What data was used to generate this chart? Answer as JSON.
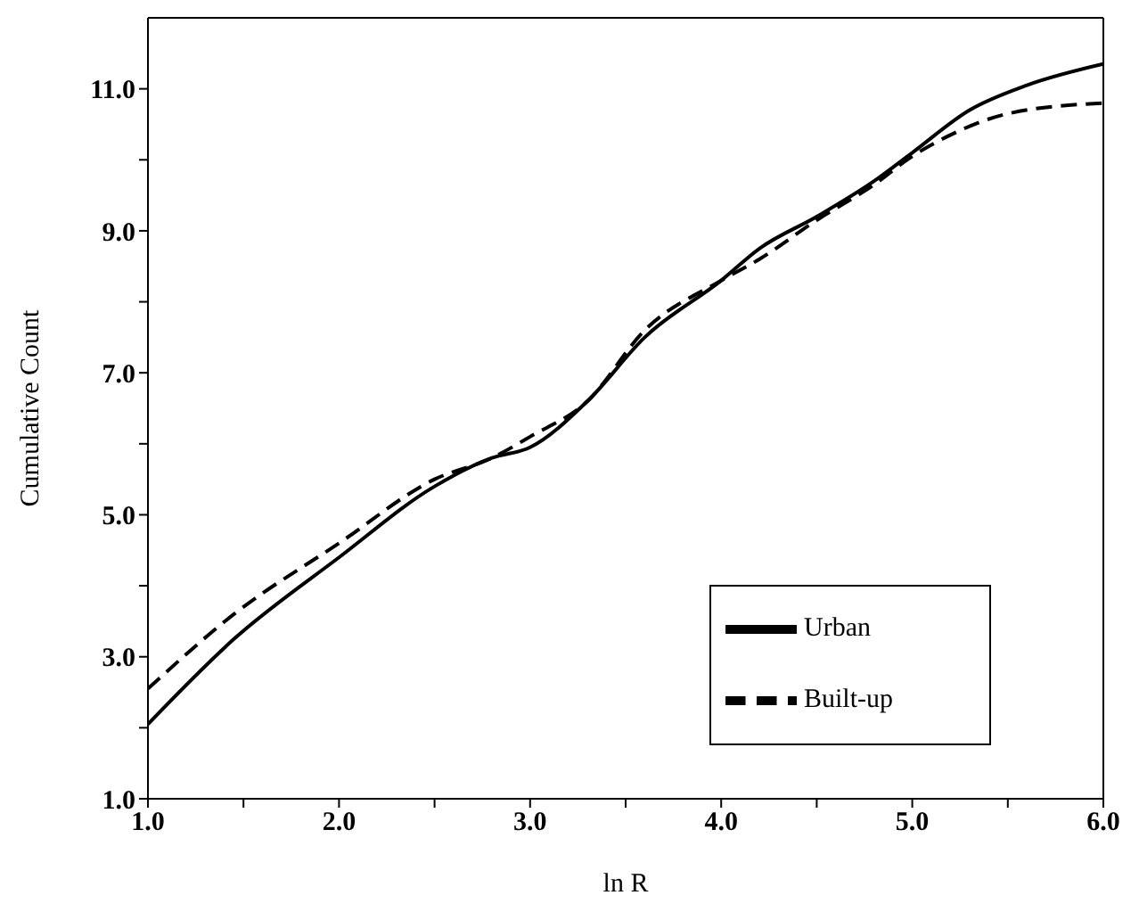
{
  "chart_data": {
    "type": "line",
    "xlabel": "ln R",
    "ylabel": "Cumulative Count",
    "xlim": [
      1,
      6
    ],
    "ylim": [
      1,
      12
    ],
    "xticks": [
      {
        "value": 1,
        "label": "1.0"
      },
      {
        "value": 1.5,
        "label": null
      },
      {
        "value": 2,
        "label": "2.0"
      },
      {
        "value": 2.5,
        "label": null
      },
      {
        "value": 3,
        "label": "3.0"
      },
      {
        "value": 3.5,
        "label": null
      },
      {
        "value": 4,
        "label": "4.0"
      },
      {
        "value": 4.5,
        "label": null
      },
      {
        "value": 5,
        "label": "5.0"
      },
      {
        "value": 5.5,
        "label": null
      },
      {
        "value": 6,
        "label": "6.0"
      }
    ],
    "yticks": [
      {
        "value": 1,
        "label": "1.0"
      },
      {
        "value": 2,
        "label": null
      },
      {
        "value": 3,
        "label": "3.0"
      },
      {
        "value": 4,
        "label": null
      },
      {
        "value": 5,
        "label": "5.0"
      },
      {
        "value": 6,
        "label": null
      },
      {
        "value": 7,
        "label": "7.0"
      },
      {
        "value": 8,
        "label": null
      },
      {
        "value": 9,
        "label": "9.0"
      },
      {
        "value": 10,
        "label": null
      },
      {
        "value": 11,
        "label": "11.0"
      }
    ],
    "grid": false,
    "legend": "bottom right",
    "marker": "none",
    "series": [
      {
        "name": "Urban",
        "color": "#000000",
        "line_style": "solid",
        "x": [
          1.0,
          1.45,
          2.0,
          2.5,
          2.8,
          3.0,
          3.3,
          3.6,
          4.0,
          4.2,
          4.5,
          4.8,
          5.0,
          5.3,
          5.6,
          6.0
        ],
        "values": [
          2.05,
          3.25,
          4.4,
          5.4,
          5.8,
          5.95,
          6.6,
          7.5,
          8.3,
          8.75,
          9.2,
          9.7,
          10.1,
          10.7,
          11.05,
          11.35
        ]
      },
      {
        "name": "Built-up",
        "color": "#000000",
        "line_style": "dashed",
        "x": [
          1.0,
          1.45,
          2.0,
          2.5,
          2.8,
          3.0,
          3.3,
          3.6,
          4.0,
          4.2,
          4.5,
          4.8,
          5.0,
          5.2,
          5.5,
          6.0
        ],
        "values": [
          2.55,
          3.6,
          4.6,
          5.5,
          5.8,
          6.1,
          6.6,
          7.6,
          8.3,
          8.6,
          9.15,
          9.65,
          10.05,
          10.35,
          10.65,
          10.8
        ]
      }
    ]
  }
}
